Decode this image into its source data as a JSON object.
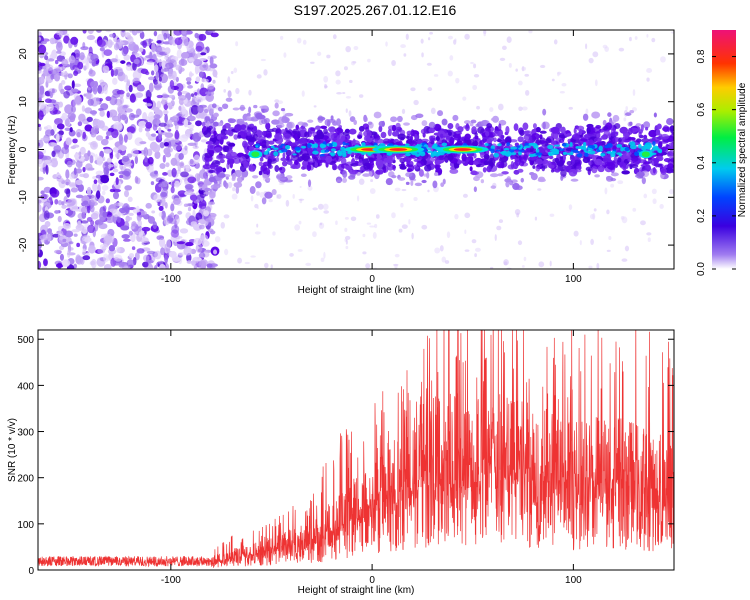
{
  "title": "S197.2025.267.01.12.E16",
  "colors": {
    "line": "#ee3333",
    "scatter_main": "#5a00e6",
    "scatter_light": "#c6a8f4",
    "axis": "#000000"
  },
  "chart_data": [
    {
      "type": "heatmap",
      "title": "S197.2025.267.01.12.E16",
      "xlabel": "Height of straight line (km)",
      "ylabel": "Frequency (Hz)",
      "xlim": [
        -166,
        150
      ],
      "ylim": [
        -25,
        25
      ],
      "xticks": [
        -100,
        0,
        100
      ],
      "yticks": [
        -20,
        -10,
        0,
        10,
        20
      ],
      "colorbar": {
        "label": "Normalized spectral amplitude",
        "range": [
          0,
          0.9
        ],
        "ticks": [
          "0.0",
          "0.2",
          "0.4",
          "0.6",
          "0.8"
        ],
        "tick_values": [
          0.0,
          0.2,
          0.4,
          0.6,
          0.8
        ]
      },
      "band": {
        "center_freq": 0,
        "start_height": -82,
        "end_height": 150
      },
      "peaks": [
        {
          "x": -1,
          "y": 0,
          "amplitude": 0.85
        },
        {
          "x": 13,
          "y": 0,
          "amplitude": 0.88
        },
        {
          "x": 45,
          "y": 0,
          "amplitude": 0.9
        },
        {
          "x": -58,
          "y": -1,
          "amplitude": 0.45
        },
        {
          "x": 136,
          "y": -1,
          "amplitude": 0.4
        }
      ]
    },
    {
      "type": "line",
      "xlabel": "Height of straight line (km)",
      "ylabel": "SNR (10 * v/v)",
      "xlim": [
        -166,
        150
      ],
      "ylim": [
        0,
        520
      ],
      "xticks": [
        -100,
        0,
        100
      ],
      "yticks": [
        0,
        100,
        200,
        300,
        400,
        500
      ],
      "envelope": {
        "x": [
          -166,
          -100,
          -80,
          -70,
          -50,
          -30,
          -20,
          -10,
          0,
          20,
          30,
          40,
          60,
          80,
          100,
          120,
          140,
          150
        ],
        "max": [
          30,
          32,
          35,
          70,
          100,
          150,
          250,
          300,
          330,
          420,
          520,
          520,
          520,
          500,
          480,
          520,
          520,
          480
        ],
        "mean": [
          18,
          18,
          20,
          30,
          50,
          70,
          100,
          130,
          160,
          220,
          250,
          270,
          260,
          240,
          220,
          230,
          200,
          190
        ]
      }
    }
  ]
}
